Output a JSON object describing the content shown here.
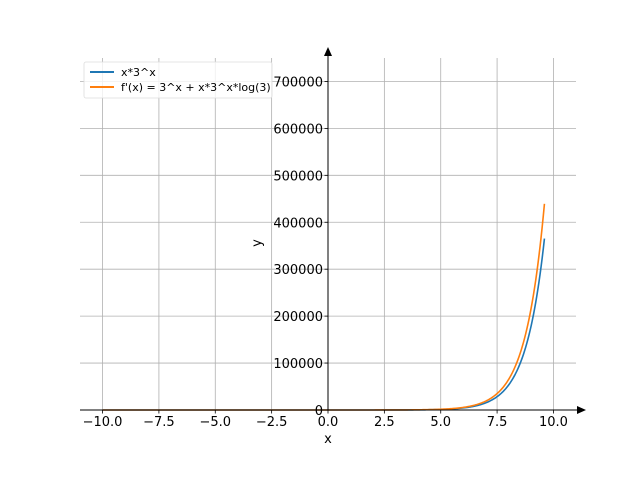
{
  "chart_data": {
    "type": "line",
    "title": "",
    "xlabel": "x",
    "ylabel": "y",
    "xlim": [
      -11.0,
      11.0
    ],
    "ylim": [
      0,
      750000
    ],
    "x_range": [
      -10,
      9.6
    ],
    "xticks": [
      -10.0,
      -7.5,
      -5.0,
      -2.5,
      0.0,
      2.5,
      5.0,
      7.5,
      10.0
    ],
    "xtick_labels": [
      "−10.0",
      "−7.5",
      "−5.0",
      "−2.5",
      "0.0",
      "2.5",
      "5.0",
      "7.5",
      "10.0"
    ],
    "yticks": [
      0,
      100000,
      200000,
      300000,
      400000,
      500000,
      600000,
      700000
    ],
    "ytick_labels": [
      "0",
      "100000",
      "200000",
      "300000",
      "400000",
      "500000",
      "600000",
      "700000"
    ],
    "grid": true,
    "legend_position": "upper-left",
    "series": [
      {
        "name": "x*3^x",
        "color": "#1f77b4",
        "formula": "x*3^x"
      },
      {
        "name": "f'(x) = 3^x + x*3^x*log(3)",
        "color": "#ff7f0e",
        "formula": "3^x + x*3^x*ln(3)"
      }
    ]
  }
}
